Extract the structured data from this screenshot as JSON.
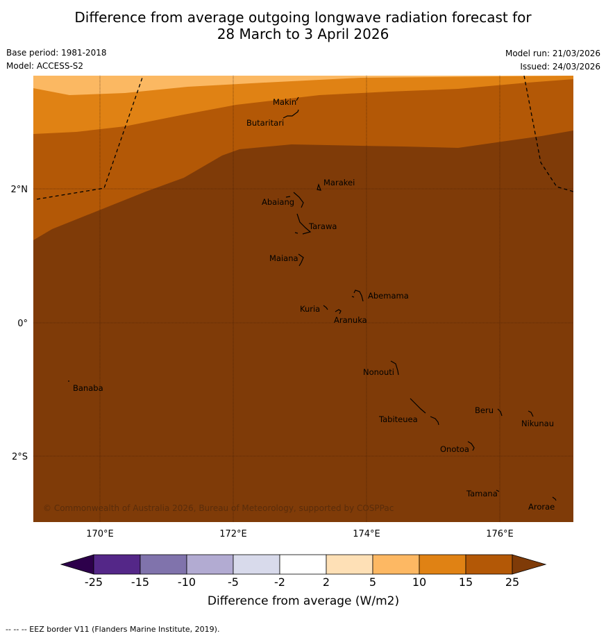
{
  "header": {
    "title_line1": "Difference from average outgoing longwave radiation forecast for",
    "title_line2": "28 March to 3 April 2026",
    "base_period": "Base period: 1981-2018",
    "model": "Model: ACCESS-S2",
    "model_run": "Model run: 21/03/2026",
    "issued": "Issued: 24/03/2026"
  },
  "map": {
    "lat_labels": [
      "2°N",
      "0°",
      "2°S"
    ],
    "lon_labels": [
      "170°E",
      "172°E",
      "174°E",
      "176°E"
    ],
    "places": [
      "Makin",
      "Butaritari",
      "Marakei",
      "Abaiang",
      "Tarawa",
      "Maiana",
      "Abemama",
      "Kuria",
      "Aranuka",
      "Nonouti",
      "Banaba",
      "Beru",
      "Tabiteuea",
      "Nikunau",
      "Onotoa",
      "Tamana",
      "Arorae"
    ],
    "copyright": "© Commonwealth of Australia 2026, Bureau of Meteorology, supported by COSPPac",
    "colors": {
      "band_5_10": "#fbb862",
      "band_10_15": "#e08214",
      "band_15_25": "#b35806",
      "band_over_25": "#7f3b08"
    }
  },
  "colorbar": {
    "ticks": [
      "-25",
      "-15",
      "-10",
      "-5",
      "-2",
      "2",
      "5",
      "10",
      "15",
      "25"
    ],
    "colors": [
      "#542788",
      "#8073ac",
      "#b2abd2",
      "#d8daeb",
      "#ffffff",
      "#fee0b6",
      "#fdb863",
      "#e08214",
      "#b35806"
    ],
    "under_color": "#2d004b",
    "over_color": "#7f3b08",
    "label": "Difference from average (W/m2)"
  },
  "footer": {
    "legend": "--  --  -- EEZ border V11 (Flanders Marine Institute, 2019)."
  }
}
